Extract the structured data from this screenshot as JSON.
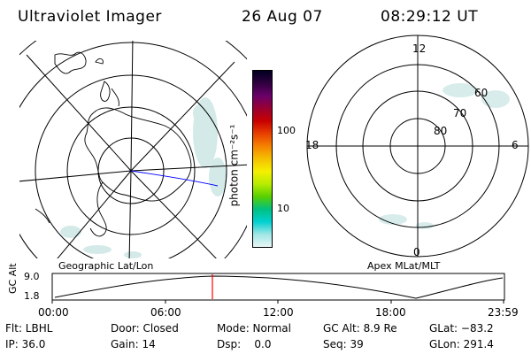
{
  "header": {
    "title": "Ultraviolet Imager",
    "date": "26 Aug 07",
    "time": "08:29:12 UT"
  },
  "left_map": {
    "caption": "Geographic Lat/Lon"
  },
  "right_map": {
    "caption": "Apex MLat/MLT",
    "mlt_labels": {
      "top": "12",
      "left": "18",
      "right": "6",
      "bottom": "0"
    },
    "mlat_labels": [
      "60",
      "70",
      "80"
    ]
  },
  "colorbar": {
    "unit_label": "photon cm⁻²s⁻¹",
    "ticks": [
      "100",
      "10"
    ],
    "colors": [
      "#000020",
      "#300040",
      "#6a006a",
      "#9a0030",
      "#c80000",
      "#e84000",
      "#f58200",
      "#f5c000",
      "#f5f000",
      "#b8ec00",
      "#58d000",
      "#00c080",
      "#00d0d0",
      "#a0e6e6",
      "#e8f6f6"
    ]
  },
  "altitude_plot": {
    "ylabel": "GC Alt",
    "yticks": [
      "9.0",
      "1.8"
    ],
    "xticks": [
      "00:00",
      "06:00",
      "12:00",
      "18:00",
      "23:59"
    ],
    "current_time_color": "#ff0000"
  },
  "status": {
    "flt": "Flt: LBHL",
    "ip": "IP: 36.0",
    "door": "Door: Closed",
    "gain": "Gain: 14",
    "mode": "Mode: Normal",
    "dsp": "Dsp:    0.0",
    "gc_alt": "GC Alt: 8.9 Re",
    "seq": "Seq: 39",
    "glat": "GLat: −83.2",
    "glon": "GLon: 291.4"
  }
}
